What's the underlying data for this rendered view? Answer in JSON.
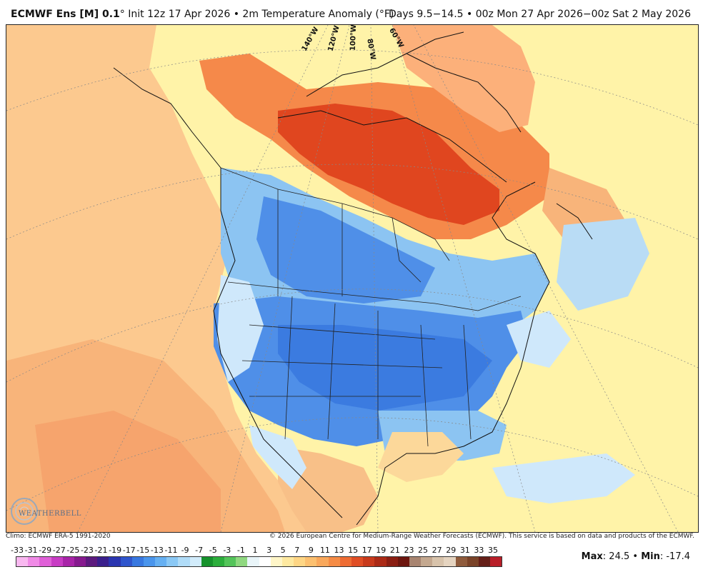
{
  "header": {
    "model": "ECMWF Ens [M] 0.1",
    "degree": "°",
    "init_info": "Init 12z 17 Apr 2026 • 2m Temperature Anomaly (°F)",
    "valid_info": "Days 9.5−14.5 • 00z Mon 27 Apr 2026−00z Sat 2 May 2026"
  },
  "map": {
    "meridian_labels": [
      "140°W",
      "120°W",
      "100°W",
      "80°W",
      "60°W"
    ],
    "colors": {
      "ocean_background": "#fff3a8",
      "pacific_warm": "#fcc98f",
      "east_pacific_warm": "#f8b47a",
      "arctic_warm": "#f5894a",
      "arctic_hot": "#e0461f",
      "us_cold": "#4f8fe8",
      "plains_cold": "#3b7be0",
      "canada_cool": "#8cc4f2",
      "light_cool": "#cfe8fb",
      "mexico_warm": "#f8c088",
      "atlantic_cool": "#b9dcf5"
    }
  },
  "footer": {
    "climo": "Climo: ECMWF ERA-5 1991-2020",
    "copyright": "© 2026 European Centre for Medium-Range Weather Forecasts (ECMWF). This service is based on data and products of the ECMWF."
  },
  "logo": {
    "text": "WEATHERBELL"
  },
  "colorbar": {
    "labels": [
      "-33",
      "-31",
      "-29",
      "-27",
      "-25",
      "-23",
      "-21",
      "-19",
      "-17",
      "-15",
      "-13",
      "-11",
      "-9",
      "-7",
      "-5",
      "-3",
      "-1",
      "1",
      "3",
      "5",
      "7",
      "9",
      "11",
      "13",
      "15",
      "17",
      "19",
      "21",
      "23",
      "25",
      "27",
      "29",
      "31",
      "33",
      "35"
    ],
    "swatches": [
      "#f9b8f0",
      "#f08ae6",
      "#e060d8",
      "#c83cc4",
      "#a824a8",
      "#861a8e",
      "#5c1a7e",
      "#3a1f8c",
      "#2a35b0",
      "#2f55cc",
      "#3878e0",
      "#4a95ec",
      "#66b0f2",
      "#8ac8f5",
      "#b0dcf8",
      "#d2ecfb",
      "#16922c",
      "#2cae3c",
      "#54c45a",
      "#8fd880",
      "#e9f5f9",
      "#ffffff",
      "#fff6c8",
      "#fee9a0",
      "#fed685",
      "#fcc070",
      "#f9a85c",
      "#f58b45",
      "#ee6c33",
      "#e04e25",
      "#c83a1c",
      "#ab2a16",
      "#8a1e12",
      "#6c160e",
      "#a88470",
      "#c4a88f",
      "#d8c3ab",
      "#e5d4c0",
      "#8f5b3c",
      "#7a4328",
      "#651f18",
      "#b81e28"
    ]
  },
  "stats": {
    "max_label": "Max",
    "max_value": "24.5",
    "min_label": "Min",
    "min_value": "-17.4"
  }
}
